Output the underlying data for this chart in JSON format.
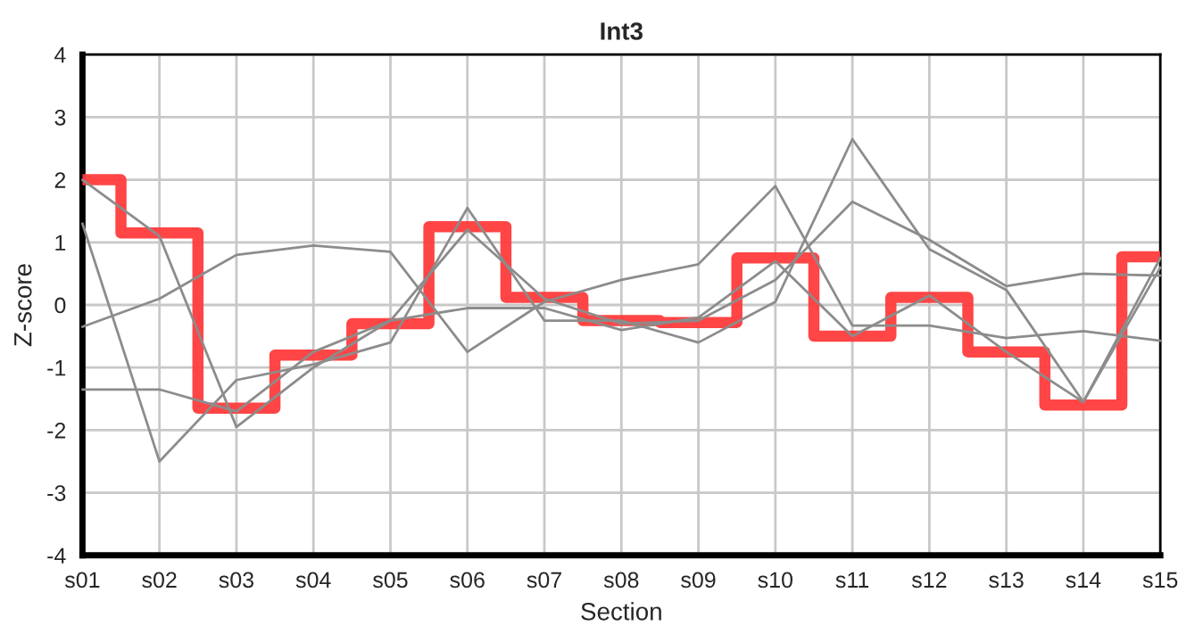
{
  "chart_data": {
    "type": "line",
    "title": "Int3",
    "xlabel": "Section",
    "ylabel": "Z-score",
    "categories": [
      "s01",
      "s02",
      "s03",
      "s04",
      "s05",
      "s06",
      "s07",
      "s08",
      "s09",
      "s10",
      "s11",
      "s12",
      "s13",
      "s14",
      "s15"
    ],
    "ylim": [
      -4,
      4
    ],
    "yticks": [
      -4,
      -3,
      -2,
      -1,
      0,
      1,
      2,
      3,
      4
    ],
    "grid": true,
    "marker": "none",
    "series": [
      {
        "color": "#8c8c8c",
        "values": [
          2.0,
          1.1,
          -1.95,
          -1.0,
          -0.25,
          1.2,
          0.1,
          -0.3,
          -0.25,
          0.4,
          1.65,
          1.04,
          0.3,
          0.5,
          0.47
        ]
      },
      {
        "color": "#8c8c8c",
        "values": [
          1.3,
          -2.5,
          -1.2,
          -0.95,
          -0.6,
          1.55,
          -0.25,
          -0.25,
          -0.6,
          0.05,
          2.65,
          0.89,
          0.24,
          -1.55,
          0.75
        ]
      },
      {
        "color": "#8c8c8c",
        "values": [
          -0.35,
          0.1,
          0.8,
          0.95,
          0.85,
          -0.75,
          0.05,
          0.4,
          0.65,
          1.9,
          -0.33,
          -0.33,
          -0.53,
          -0.42,
          -0.57
        ]
      },
      {
        "color": "#8c8c8c",
        "values": [
          -1.35,
          -1.35,
          -1.7,
          -0.75,
          -0.25,
          -0.05,
          -0.05,
          -0.4,
          -0.2,
          0.7,
          -0.5,
          0.15,
          -0.75,
          -1.55,
          0.6
        ]
      },
      {
        "type": "step",
        "color": "#ff3b3b",
        "values": [
          2.0,
          1.15,
          -1.65,
          -0.8,
          -0.3,
          1.25,
          0.12,
          -0.25,
          -0.28,
          0.75,
          -0.5,
          0.12,
          -0.75,
          -1.6,
          0.77
        ]
      }
    ]
  }
}
